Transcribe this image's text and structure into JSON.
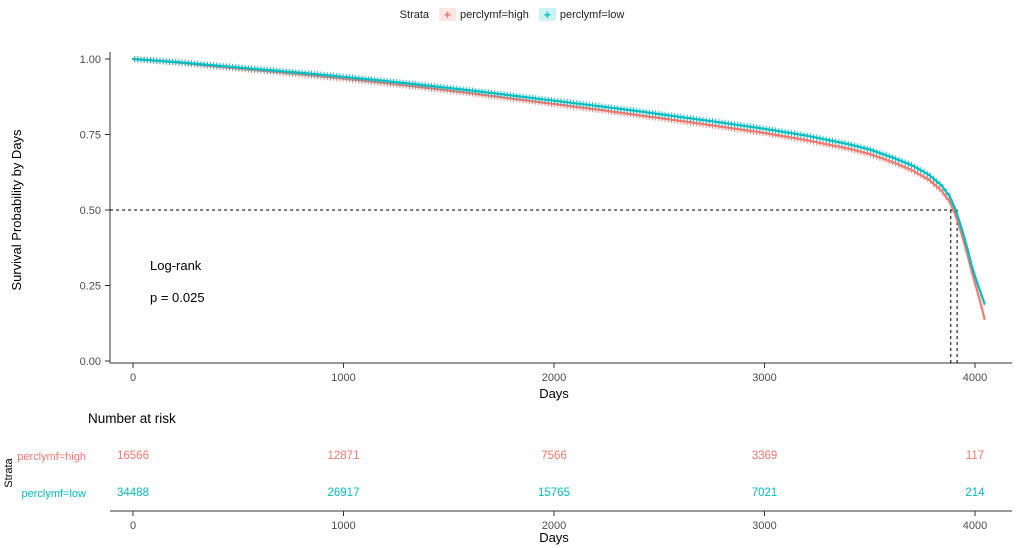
{
  "legend": {
    "title": "Strata",
    "items": [
      {
        "label": "perclymf=high",
        "color": "#F8766D"
      },
      {
        "label": "perclymf=low",
        "color": "#00BFC4"
      }
    ]
  },
  "chart_data": {
    "type": "line",
    "subtype": "kaplan-meier-survival",
    "title": "",
    "xlabel": "Days",
    "ylabel": "Survival Probability by Days",
    "xlim": [
      0,
      4100
    ],
    "ylim": [
      0,
      1
    ],
    "x_ticks": [
      0,
      1000,
      2000,
      3000,
      4000
    ],
    "x_tick_labels": [
      "0",
      "1000",
      "2000",
      "3000",
      "4000"
    ],
    "y_ticks": [
      0,
      0.25,
      0.5,
      0.75,
      1.0
    ],
    "y_tick_labels": [
      "0.00",
      "0.25",
      "0.50",
      "0.75",
      "1.00"
    ],
    "grid": false,
    "legend_position": "top",
    "annotations": {
      "log_rank_label": "Log-rank",
      "p_value": "p = 0.025"
    },
    "median_survival": {
      "prob": 0.5,
      "x_values": [
        3885,
        3915
      ]
    },
    "series": [
      {
        "name": "perclymf=high",
        "color": "#F8766D",
        "x": [
          0,
          200,
          400,
          600,
          800,
          1000,
          1200,
          1400,
          1600,
          1800,
          2000,
          2200,
          2400,
          2600,
          2800,
          3000,
          3200,
          3400,
          3500,
          3600,
          3700,
          3780,
          3840,
          3880,
          3905,
          3925,
          3945,
          3965,
          3985,
          4005,
          4025,
          4045
        ],
        "y": [
          1.0,
          0.989,
          0.975,
          0.962,
          0.949,
          0.935,
          0.92,
          0.904,
          0.887,
          0.869,
          0.851,
          0.833,
          0.814,
          0.795,
          0.775,
          0.755,
          0.731,
          0.703,
          0.685,
          0.661,
          0.632,
          0.601,
          0.565,
          0.527,
          0.487,
          0.447,
          0.4,
          0.35,
          0.295,
          0.245,
          0.195,
          0.14
        ]
      },
      {
        "name": "perclymf=low",
        "color": "#00BFC4",
        "x": [
          0,
          200,
          400,
          600,
          800,
          1000,
          1200,
          1400,
          1600,
          1800,
          2000,
          2200,
          2400,
          2600,
          2800,
          3000,
          3200,
          3400,
          3500,
          3600,
          3700,
          3780,
          3840,
          3880,
          3905,
          3925,
          3945,
          3965,
          3985,
          4005,
          4025,
          4045
        ],
        "y": [
          1.0,
          0.99,
          0.978,
          0.966,
          0.954,
          0.941,
          0.927,
          0.912,
          0.896,
          0.879,
          0.862,
          0.845,
          0.827,
          0.808,
          0.789,
          0.769,
          0.746,
          0.718,
          0.7,
          0.676,
          0.648,
          0.617,
          0.582,
          0.545,
          0.505,
          0.465,
          0.42,
          0.37,
          0.315,
          0.27,
          0.23,
          0.19
        ]
      }
    ]
  },
  "risk_table": {
    "title": "Number at risk",
    "axis_label": "Strata",
    "xlabel": "Days",
    "times": [
      0,
      1000,
      2000,
      3000,
      4000
    ],
    "time_labels": [
      "0",
      "1000",
      "2000",
      "3000",
      "4000"
    ],
    "rows": [
      {
        "label": "perclymf=high",
        "color": "#F8766D",
        "values": [
          "16566",
          "12871",
          "7566",
          "3369",
          "117"
        ]
      },
      {
        "label": "perclymf=low",
        "color": "#00BFC4",
        "values": [
          "34488",
          "26917",
          "15765",
          "7021",
          "214"
        ]
      }
    ]
  }
}
